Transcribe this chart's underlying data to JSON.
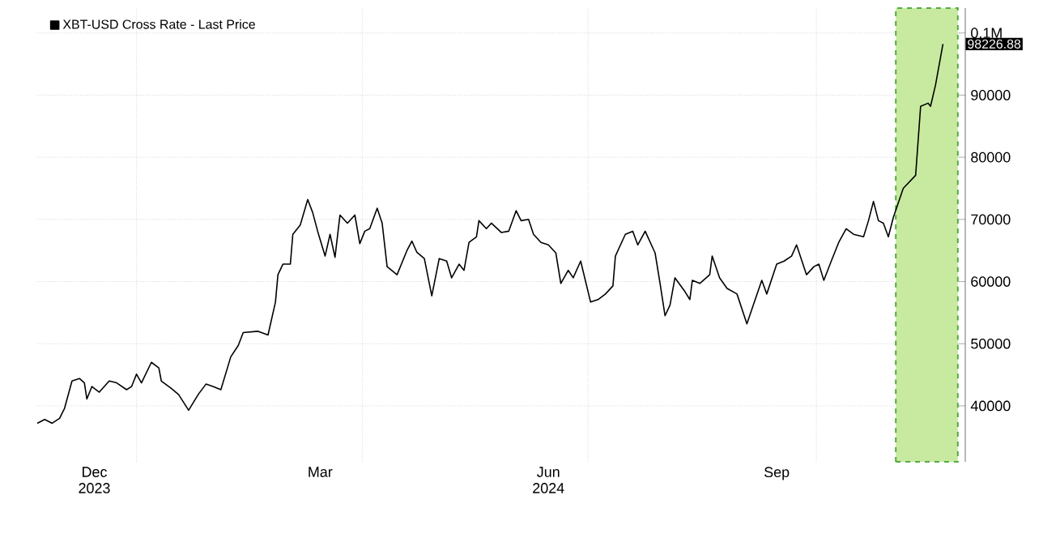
{
  "chart_data": {
    "type": "line",
    "legend": "top left",
    "grid": true,
    "marker": "none",
    "line_style": "solid",
    "xlim": [
      "2023-11-22",
      "2024-11-30"
    ],
    "xticks": [
      {
        "value": "2023-12-15",
        "label": "Dec 2023"
      },
      {
        "value": "2024-01-01",
        "label": null
      },
      {
        "value": "2024-03-15",
        "label": "Mar"
      },
      {
        "value": "2024-04-01",
        "label": null
      },
      {
        "value": "2024-06-15",
        "label": "Jun 2024"
      },
      {
        "value": "2024-07-01",
        "label": null
      },
      {
        "value": "2024-09-15",
        "label": "Sep"
      },
      {
        "value": "2024-10-01",
        "label": null
      }
    ],
    "ylim": [
      31000,
      104000
    ],
    "yticks": [
      40000,
      50000,
      60000,
      70000,
      80000,
      90000,
      {
        "value": 100000,
        "label": "0.1M"
      }
    ],
    "bands": [
      {
        "axis": "x",
        "from": "2024-11-02",
        "to": "2024-11-27",
        "color": "#c8eaa0"
      }
    ],
    "annotations": [
      "98226.88"
    ],
    "series": [
      {
        "name": "XBT-USD Cross Rate - Last Price",
        "color": "#000000",
        "x": [
          "2023-11-22",
          "2023-11-25",
          "2023-11-28",
          "2023-12-01",
          "2023-12-03",
          "2023-12-06",
          "2023-12-09",
          "2023-12-11",
          "2023-12-12",
          "2023-12-14",
          "2023-12-17",
          "2023-12-21",
          "2023-12-24",
          "2023-12-28",
          "2023-12-30",
          "2024-01-01",
          "2024-01-03",
          "2024-01-07",
          "2024-01-10",
          "2024-01-11",
          "2024-01-15",
          "2024-01-18",
          "2024-01-22",
          "2024-01-26",
          "2024-01-29",
          "2024-02-01",
          "2024-02-04",
          "2024-02-08",
          "2024-02-11",
          "2024-02-13",
          "2024-02-19",
          "2024-02-23",
          "2024-02-26",
          "2024-02-27",
          "2024-02-29",
          "2024-03-03",
          "2024-03-04",
          "2024-03-07",
          "2024-03-10",
          "2024-03-12",
          "2024-03-14",
          "2024-03-17",
          "2024-03-19",
          "2024-03-21",
          "2024-03-23",
          "2024-03-26",
          "2024-03-29",
          "2024-03-31",
          "2024-04-02",
          "2024-04-04",
          "2024-04-07",
          "2024-04-09",
          "2024-04-11",
          "2024-04-15",
          "2024-04-19",
          "2024-04-21",
          "2024-04-23",
          "2024-04-26",
          "2024-04-29",
          "2024-05-02",
          "2024-05-05",
          "2024-05-07",
          "2024-05-10",
          "2024-05-12",
          "2024-05-14",
          "2024-05-17",
          "2024-05-18",
          "2024-05-21",
          "2024-05-23",
          "2024-05-27",
          "2024-05-30",
          "2024-06-02",
          "2024-06-04",
          "2024-06-07",
          "2024-06-09",
          "2024-06-12",
          "2024-06-15",
          "2024-06-18",
          "2024-06-20",
          "2024-06-23",
          "2024-06-25",
          "2024-06-28",
          "2024-07-02",
          "2024-07-05",
          "2024-07-08",
          "2024-07-11",
          "2024-07-12",
          "2024-07-16",
          "2024-07-19",
          "2024-07-21",
          "2024-07-24",
          "2024-07-28",
          "2024-07-30",
          "2024-08-01",
          "2024-08-03",
          "2024-08-05",
          "2024-08-09",
          "2024-08-11",
          "2024-08-12",
          "2024-08-15",
          "2024-08-19",
          "2024-08-20",
          "2024-08-23",
          "2024-08-26",
          "2024-08-30",
          "2024-09-03",
          "2024-09-06",
          "2024-09-09",
          "2024-09-11",
          "2024-09-15",
          "2024-09-18",
          "2024-09-21",
          "2024-09-23",
          "2024-09-27",
          "2024-09-30",
          "2024-10-02",
          "2024-10-04",
          "2024-10-07",
          "2024-10-10",
          "2024-10-13",
          "2024-10-16",
          "2024-10-20",
          "2024-10-22",
          "2024-10-24",
          "2024-10-26",
          "2024-10-28",
          "2024-10-30",
          "2024-11-01",
          "2024-11-05",
          "2024-11-10",
          "2024-11-12",
          "2024-11-15",
          "2024-11-16",
          "2024-11-18",
          "2024-11-21"
        ],
        "values": [
          37200,
          37800,
          37200,
          38000,
          39600,
          44000,
          44400,
          43700,
          41100,
          43100,
          42200,
          44000,
          43700,
          42600,
          43100,
          45100,
          43700,
          47000,
          46100,
          44000,
          42800,
          41800,
          39300,
          41900,
          43500,
          43100,
          42600,
          47900,
          49700,
          51800,
          52000,
          51400,
          56700,
          61100,
          62800,
          62800,
          67600,
          69100,
          73200,
          71100,
          68100,
          64100,
          67600,
          63900,
          70700,
          69400,
          70700,
          66100,
          68100,
          68500,
          71800,
          69400,
          62400,
          61100,
          65000,
          66500,
          64700,
          63700,
          57700,
          63700,
          63300,
          60600,
          62800,
          61800,
          66300,
          67200,
          69800,
          68500,
          69400,
          67900,
          68100,
          71400,
          69800,
          70000,
          67600,
          66300,
          65900,
          64600,
          59700,
          61800,
          60600,
          63300,
          56700,
          57100,
          58000,
          59300,
          64100,
          67600,
          68100,
          65900,
          68100,
          64600,
          59700,
          54500,
          56200,
          60600,
          58400,
          57100,
          60200,
          59700,
          61100,
          64100,
          60600,
          58900,
          58000,
          53200,
          56700,
          60200,
          58000,
          62800,
          63300,
          64100,
          65900,
          61100,
          62400,
          62800,
          60200,
          63300,
          66300,
          68500,
          67600,
          67200,
          69800,
          72900,
          69800,
          69400,
          67200,
          70300,
          75000,
          77100,
          88200,
          88700,
          88200,
          91600,
          98226.88
        ]
      }
    ]
  }
}
